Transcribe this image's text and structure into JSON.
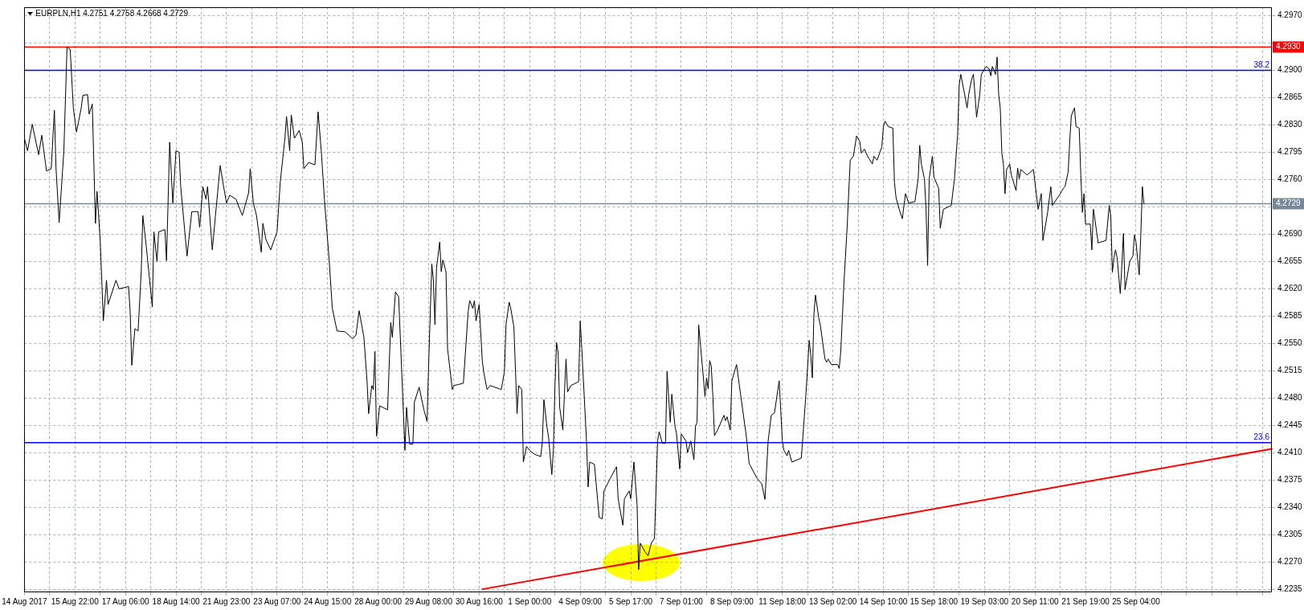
{
  "chart_data": {
    "type": "line",
    "title": "EURPLN,H1 4.2751 4.2758 4.2668 4.2729",
    "categories": [
      "14 Aug 2017",
      null,
      null,
      null,
      null,
      null,
      null,
      null,
      null,
      null,
      null,
      null,
      null,
      null,
      null,
      null,
      null,
      null,
      null,
      null,
      null,
      null,
      null,
      null,
      null,
      null,
      null,
      null,
      null,
      null,
      null,
      null,
      "15 Aug 22:00",
      null,
      null,
      null,
      null,
      null,
      null,
      null,
      null,
      null,
      null,
      null,
      null,
      null,
      null,
      null,
      null,
      null,
      null,
      null,
      null,
      null,
      null,
      null,
      null,
      null,
      null,
      null,
      null,
      null,
      null,
      null,
      "17 Aug 06:00",
      null,
      null,
      null,
      null,
      null,
      null,
      null,
      null,
      null,
      null,
      null,
      null,
      null,
      null,
      null,
      null,
      null,
      null,
      null,
      null,
      null,
      null,
      null,
      null,
      null,
      null,
      null,
      null,
      null,
      null,
      null,
      "18 Aug 14:00",
      null,
      null,
      null,
      null,
      null,
      null,
      null,
      null,
      null,
      null,
      null,
      null,
      null,
      null,
      null,
      null,
      null,
      null,
      null,
      null,
      null,
      null,
      null,
      null,
      null,
      null,
      null,
      null,
      null,
      null,
      null,
      "21 Aug 23:00",
      null,
      null,
      null,
      null,
      null,
      null,
      null,
      null,
      null,
      null,
      null,
      null,
      null,
      null,
      null,
      null,
      null,
      null,
      null,
      null,
      null,
      null,
      null,
      null,
      null,
      null,
      null,
      null,
      null,
      null,
      null,
      "23 Aug 07:00",
      null,
      null,
      null,
      null,
      null,
      null,
      null,
      null,
      null,
      null,
      null,
      null,
      null,
      null,
      null,
      null,
      null,
      null,
      null,
      null,
      null,
      null,
      null,
      null,
      null,
      null,
      null,
      null,
      null,
      null,
      null,
      "24 Aug 15:00",
      null,
      null,
      null,
      null,
      null,
      null,
      null,
      null,
      null,
      null,
      null,
      null,
      null,
      null,
      null,
      null,
      null,
      null,
      null,
      null,
      null,
      null,
      null,
      null,
      null,
      null,
      null,
      null,
      null,
      null,
      null,
      "28 Aug 00:00",
      null,
      null,
      null,
      null,
      null,
      null,
      null,
      null,
      null,
      null,
      null,
      null,
      null,
      null,
      null,
      null,
      null,
      null,
      null,
      null,
      null,
      null,
      null,
      null,
      null,
      null,
      null,
      null,
      null,
      null,
      null,
      "29 Aug 08:00",
      null,
      null,
      null,
      null,
      null,
      null,
      null,
      null,
      null,
      null,
      null,
      null,
      null,
      null,
      null,
      null,
      null,
      null,
      null,
      null,
      null,
      null,
      null,
      null,
      null,
      null,
      null,
      null,
      null,
      null,
      null,
      "30 Aug 16:00",
      null,
      null,
      null,
      null,
      null,
      null,
      null,
      null,
      null,
      null,
      null,
      null,
      null,
      null,
      null,
      null,
      null,
      null,
      null,
      null,
      null,
      null,
      null,
      null,
      null,
      null,
      null,
      null,
      null,
      null,
      null,
      "1 Sep 00:00",
      null,
      null,
      null,
      null,
      null,
      null,
      null,
      null,
      null,
      null,
      null,
      null,
      null,
      null,
      null,
      null,
      null,
      null,
      null,
      null,
      null,
      null,
      null,
      null,
      null,
      null,
      null,
      null,
      null,
      null,
      null,
      "4 Sep 09:00",
      null,
      null,
      null,
      null,
      null,
      null,
      null,
      null,
      null,
      null,
      null,
      null,
      null,
      null,
      null,
      null,
      null,
      null,
      null,
      null,
      null,
      null,
      null,
      null,
      null,
      null,
      null,
      null,
      null,
      null,
      null,
      "5 Sep 17:00",
      null,
      null,
      null,
      null,
      null,
      null,
      null,
      null,
      null,
      null,
      null,
      null,
      null,
      null,
      null,
      null,
      null,
      null,
      null,
      null,
      null,
      null,
      null,
      null,
      null,
      null,
      null,
      null,
      null,
      null,
      null,
      "7 Sep 01:00",
      null,
      null,
      null,
      null,
      null,
      null,
      null,
      null,
      null,
      null,
      null,
      null,
      null,
      null,
      null,
      null,
      null,
      null,
      null,
      null,
      null,
      null,
      null,
      null,
      null,
      null,
      null,
      null,
      null,
      null,
      null,
      "8 Sep 09:00",
      null,
      null,
      null,
      null,
      null,
      null,
      null,
      null,
      null,
      null,
      null,
      null,
      null,
      null,
      null,
      null,
      null,
      null,
      null,
      null,
      null,
      null,
      null,
      null,
      null,
      null,
      null,
      null,
      null,
      null,
      null,
      "11 Sep 18:00",
      null,
      null,
      null,
      null,
      null,
      null,
      null,
      null,
      null,
      null,
      null,
      null,
      null,
      null,
      null,
      null,
      null,
      null,
      null,
      null,
      null,
      null,
      null,
      null,
      null,
      null,
      null,
      null,
      null,
      null,
      null,
      "13 Sep 02:00",
      null,
      null,
      null,
      null,
      null,
      null,
      null,
      null,
      null,
      null,
      null,
      null,
      null,
      null,
      null,
      null,
      null,
      null,
      null,
      null,
      null,
      null,
      null,
      null,
      null,
      null,
      null,
      null,
      null,
      null,
      null,
      "14 Sep 10:00",
      null,
      null,
      null,
      null,
      null,
      null,
      null,
      null,
      null,
      null,
      null,
      null,
      null,
      null,
      null,
      null,
      null,
      null,
      null,
      null,
      null,
      null,
      null,
      null,
      null,
      null,
      null,
      null,
      null,
      null,
      null,
      "15 Sep 18:00",
      null,
      null,
      null,
      null,
      null,
      null,
      null,
      null,
      null,
      null,
      null,
      null,
      null,
      null,
      null,
      null,
      null,
      null,
      null,
      null,
      null,
      null,
      null,
      null,
      null,
      null,
      null,
      null,
      null,
      null,
      null,
      "19 Sep 03:00",
      null,
      null,
      null,
      null,
      null,
      null,
      null,
      null,
      null,
      null,
      null,
      null,
      null,
      null,
      null,
      null,
      null,
      null,
      null,
      null,
      null,
      null,
      null,
      null,
      null,
      null,
      null,
      null,
      null,
      null,
      null,
      "20 Sep 11:00",
      null,
      null,
      null,
      null,
      null,
      null,
      null,
      null,
      null,
      null,
      null,
      null,
      null,
      null,
      null,
      null,
      null,
      null,
      null,
      null,
      null,
      null,
      null,
      null,
      null,
      null,
      null,
      null,
      null,
      null,
      null,
      "21 Sep 19:00",
      null,
      null,
      null,
      null,
      null,
      null,
      null,
      null,
      null,
      null,
      null,
      null,
      null,
      null,
      null,
      null,
      null,
      null,
      null,
      null,
      null,
      null,
      null,
      null,
      null,
      null,
      null,
      null,
      null,
      null,
      null,
      "25 Sep 04:00",
      null,
      null,
      null,
      null,
      null,
      null,
      null,
      null,
      null,
      null,
      null,
      null,
      null,
      null,
      null,
      null,
      null,
      null,
      null,
      null,
      null,
      null,
      null,
      null,
      null,
      null,
      null,
      null,
      null,
      null,
      null,
      null,
      null,
      null,
      null,
      null,
      null,
      null,
      null,
      null,
      null,
      null,
      null,
      null,
      null,
      null,
      null,
      null,
      null,
      null,
      null,
      null,
      null,
      null,
      null,
      null,
      null,
      null,
      null,
      null,
      null,
      null,
      null,
      null,
      null,
      null,
      null,
      null,
      null,
      null,
      null,
      null,
      null,
      null,
      null,
      null,
      null,
      null,
      null,
      null,
      null,
      null,
      null,
      null,
      null,
      null
    ],
    "series": [
      {
        "color": "#000000",
        "values": [
          4.2813,
          null,
          4.2797,
          null,
          null,
          4.2831,
          null,
          null,
          null,
          4.2792,
          null,
          4.2817,
          null,
          null,
          4.2771,
          null,
          null,
          4.2774,
          null,
          4.2849,
          4.2776,
          null,
          4.2705,
          null,
          null,
          4.2797,
          null,
          4.293,
          null,
          4.2927,
          null,
          4.2852,
          null,
          4.2821,
          null,
          null,
          4.2852,
          4.2868,
          null,
          null,
          4.2869,
          4.2844,
          null,
          4.2857,
          null,
          4.2704,
          4.2745,
          null,
          4.2683,
          null,
          4.2579,
          null,
          4.2631,
          4.26,
          null,
          null,
          null,
          null,
          4.2631,
          null,
          4.262,
          null,
          null,
          null,
          null,
          null,
          4.2623,
          4.259,
          4.2522,
          null,
          4.2569,
          null,
          4.2566,
          null,
          4.2642,
          4.2714,
          null,
          4.2678,
          null,
          null,
          null,
          4.2597,
          4.2693,
          null,
          4.2655,
          4.2693,
          null,
          null,
          null,
          4.2696,
          4.2656,
          null,
          4.2808,
          null,
          4.273,
          null,
          4.2797,
          null,
          4.2795,
          4.2751,
          null,
          null,
          null,
          4.2662,
          null,
          null,
          4.2719,
          null,
          null,
          null,
          4.2719,
          4.2699,
          null,
          4.2751,
          null,
          4.2735,
          4.2751,
          null,
          null,
          4.267,
          null,
          4.2714,
          null,
          null,
          4.2778,
          null,
          4.2753,
          null,
          4.273,
          null,
          4.274,
          null,
          null,
          null,
          4.2735,
          null,
          null,
          null,
          4.2714,
          null,
          null,
          null,
          4.2743,
          4.2774,
          null,
          4.273,
          null,
          4.2714,
          null,
          null,
          4.2667,
          4.2704,
          null,
          4.2683,
          null,
          null,
          4.267,
          null,
          null,
          null,
          4.2693,
          null,
          4.2756,
          null,
          null,
          4.2813,
          4.2841,
          null,
          4.2797,
          4.2843,
          null,
          4.2813,
          null,
          null,
          4.2823,
          null,
          4.2808,
          4.2774,
          null,
          null,
          4.2782,
          null,
          null,
          null,
          4.2779,
          null,
          4.2847,
          null,
          4.2797,
          null,
          4.2735,
          null,
          null,
          4.2657,
          null,
          4.2595,
          null,
          null,
          4.2566,
          null,
          null,
          null,
          null,
          4.2565,
          null,
          null,
          null,
          null,
          4.2556,
          null,
          4.2561,
          null,
          4.2592,
          null,
          null,
          4.2558,
          null,
          4.2501,
          4.246,
          null,
          4.2496,
          4.2491,
          4.254,
          4.2431,
          null,
          4.247,
          null,
          null,
          null,
          null,
          4.2465,
          null,
          4.2577,
          4.2558,
          null,
          4.2616,
          null,
          4.261,
          null,
          4.2512,
          null,
          4.2413,
          4.2468,
          null,
          4.2421,
          null,
          4.2421,
          4.2475,
          null,
          null,
          4.2494,
          null,
          null,
          4.2465,
          null,
          4.245,
          4.2522,
          null,
          4.2652,
          4.2631,
          4.2574,
          4.2647,
          null,
          4.268,
          4.2642,
          4.2657,
          null,
          4.2642,
          4.2543,
          null,
          null,
          4.2491,
          4.2496,
          null,
          null,
          null,
          null,
          null,
          4.2499,
          null,
          null,
          4.259,
          4.2605,
          null,
          4.2595,
          4.2605,
          4.2579,
          null,
          4.26,
          null,
          4.2527,
          4.2512,
          null,
          4.2491,
          null,
          4.2496,
          null,
          null,
          null,
          null,
          null,
          null,
          4.2491,
          null,
          4.2514,
          4.2574,
          null,
          4.2603,
          4.2595,
          null,
          4.2571,
          null,
          4.246,
          4.2496,
          null,
          4.2491,
          4.2398,
          null,
          4.2418,
          null,
          4.2413,
          null,
          null,
          4.2408,
          null,
          null,
          null,
          4.2405,
          4.2424,
          4.2478,
          null,
          4.2442,
          4.2429,
          null,
          4.2382,
          4.2413,
          4.2496,
          4.2551,
          4.2538,
          4.2468,
          null,
          4.2439,
          4.2486,
          4.253,
          4.2488,
          null,
          4.2496,
          null,
          null,
          null,
          null,
          4.2501,
          4.2579,
          4.2543,
          null,
          null,
          4.2424,
          4.2366,
          4.2398,
          null,
          null,
          4.2395,
          null,
          null,
          4.2327,
          null,
          4.2325,
          4.2361,
          null,
          null,
          null,
          4.2377,
          null,
          null,
          null,
          4.2392,
          4.2351,
          null,
          null,
          4.2317,
          4.2351,
          null,
          null,
          4.2361,
          4.2351,
          null,
          4.2398,
          null,
          4.2343,
          4.226,
          4.2294,
          null,
          null,
          4.2283,
          null,
          4.2278,
          null,
          4.2294,
          null,
          4.23,
          null,
          4.2425,
          4.2437,
          null,
          4.2422,
          null,
          4.2422,
          4.2514,
          null,
          4.2449,
          4.2485,
          null,
          4.2444,
          4.2434,
          null,
          4.2389,
          4.2434,
          null,
          null,
          4.2425,
          4.241,
          null,
          4.2425,
          null,
          4.2401,
          4.2444,
          4.2449,
          4.2574,
          null,
          null,
          4.2506,
          4.2482,
          4.2506,
          4.2492,
          4.2528,
          4.2521,
          4.2482,
          4.2432,
          null,
          4.2439,
          null,
          null,
          null,
          4.2458,
          4.2451,
          4.2456,
          null,
          4.2439,
          4.2502,
          null,
          null,
          4.2523,
          null,
          null,
          4.2478,
          null,
          null,
          4.2434,
          null,
          4.2396,
          null,
          null,
          null,
          null,
          4.2377,
          null,
          null,
          4.237,
          null,
          4.235,
          null,
          4.2425,
          null,
          4.2458,
          null,
          4.2461,
          null,
          null,
          4.2502,
          null,
          4.2425,
          4.2413,
          null,
          4.2406,
          4.2413,
          null,
          4.2398,
          null,
          null,
          null,
          null,
          null,
          4.2403,
          4.243,
          null,
          4.2487,
          null,
          4.2554,
          4.2535,
          4.2506,
          4.2588,
          4.2612,
          null,
          4.2583,
          4.2574,
          null,
          null,
          4.253,
          4.2526,
          4.253,
          null,
          4.2523,
          null,
          null,
          null,
          4.2523,
          4.2518,
          4.254,
          null,
          4.2627,
          null,
          4.2698,
          null,
          4.2785,
          null,
          4.279,
          null,
          4.2816,
          null,
          4.2809,
          4.2794,
          null,
          4.2799,
          null,
          4.279,
          null,
          null,
          4.278,
          4.279,
          null,
          4.2785,
          null,
          null,
          4.2802,
          4.2828,
          4.2835,
          null,
          4.2828,
          null,
          null,
          4.2826,
          4.2756,
          4.2737,
          null,
          4.2722,
          null,
          4.271,
          null,
          4.2742,
          null,
          4.273,
          null,
          null,
          null,
          4.2732,
          null,
          4.2761,
          4.2804,
          4.278,
          null,
          4.2761,
          4.2722,
          4.265,
          4.2761,
          null,
          4.279,
          4.2763,
          null,
          null,
          4.2749,
          4.2698,
          null,
          4.2722,
          null,
          null,
          null,
          null,
          4.2727,
          null,
          4.2761,
          null,
          4.2818,
          4.2881,
          4.2895,
          null,
          4.2874,
          null,
          4.2852,
          4.2869,
          null,
          4.289,
          4.2895,
          4.2869,
          4.284,
          null,
          4.2869,
          4.2895,
          null,
          null,
          4.2905,
          null,
          4.2902,
          4.2893,
          4.2905,
          null,
          4.2895,
          4.2917,
          4.2869,
          4.2852,
          4.2794,
          4.278,
          4.2742,
          4.2773,
          null,
          4.278,
          4.2766,
          null,
          null,
          4.2746,
          4.2775,
          4.2761,
          4.2773,
          null,
          null,
          null,
          4.2766,
          null,
          null,
          null,
          4.2773,
          null,
          4.2739,
          4.2722,
          null,
          4.2742,
          4.2682,
          4.2694,
          null,
          4.2718,
          null,
          4.2751,
          4.2727,
          null,
          null,
          null,
          null,
          4.2742,
          null,
          4.2749,
          4.2751,
          null,
          4.277,
          4.2809,
          4.2842,
          null,
          4.2852,
          4.2828,
          null,
          4.2826,
          4.2766,
          4.2718,
          4.2742,
          4.2703,
          null,
          null,
          4.2703,
          4.267,
          4.2722,
          4.2708,
          null,
          4.2679,
          null,
          null,
          null,
          null,
          4.2682,
          null,
          4.2727,
          4.2713,
          4.2641,
          4.266,
          4.267,
          4.266,
          null,
          4.2614,
          4.265,
          4.2691,
          4.2619,
          4.2631,
          null,
          4.2655,
          null,
          4.2662,
          4.2689,
          4.2679,
          4.2658,
          4.2638,
          4.2689,
          4.2751,
          4.2729,
          null,
          null,
          null,
          null,
          null,
          null,
          null,
          null,
          null,
          null,
          null,
          null,
          null,
          null,
          null,
          null,
          null,
          null,
          null,
          null,
          null,
          null,
          null,
          null,
          null,
          null,
          null,
          null,
          null,
          null,
          null,
          null,
          null,
          null,
          null,
          null,
          null,
          null,
          null,
          null,
          null,
          null,
          null,
          null,
          null,
          null,
          null,
          null,
          null,
          null,
          null,
          null,
          null,
          null,
          null,
          null,
          null,
          null,
          null,
          null,
          null,
          null,
          null,
          null,
          null,
          null,
          null,
          null,
          null,
          null,
          null,
          null,
          null,
          null,
          null,
          null,
          null,
          null,
          null,
          null,
          null
        ]
      },
      {
        "color": "#ff0000",
        "values": [
          null,
          null,
          null,
          null,
          null,
          null,
          null,
          null,
          null,
          null,
          null,
          null,
          null,
          null,
          null,
          null,
          null,
          null,
          null,
          null,
          null,
          null,
          null,
          null,
          null,
          null,
          null,
          null,
          null,
          null,
          null,
          null,
          null,
          null,
          null,
          null,
          null,
          null,
          null,
          null,
          null,
          null,
          null,
          null,
          null,
          null,
          null,
          null,
          null,
          null,
          null,
          null,
          null,
          null,
          null,
          null,
          null,
          null,
          null,
          null,
          null,
          null,
          null,
          null,
          null,
          null,
          null,
          null,
          null,
          null,
          null,
          null,
          null,
          null,
          null,
          null,
          null,
          null,
          null,
          null,
          null,
          null,
          null,
          null,
          null,
          null,
          null,
          null,
          null,
          null,
          null,
          null,
          null,
          null,
          null,
          null,
          null,
          null,
          null,
          null,
          null,
          null,
          null,
          null,
          null,
          null,
          null,
          null,
          null,
          null,
          null,
          null,
          null,
          null,
          null,
          null,
          null,
          null,
          null,
          null,
          null,
          null,
          null,
          null,
          null,
          null,
          null,
          null,
          null,
          null,
          null,
          null,
          null,
          null,
          null,
          null,
          null,
          null,
          null,
          null,
          null,
          null,
          null,
          null,
          null,
          null,
          null,
          null,
          null,
          null,
          null,
          null,
          null,
          null,
          null,
          null,
          null,
          null,
          null,
          null,
          null,
          null,
          null,
          null,
          null,
          null,
          null,
          null,
          null,
          null,
          null,
          null,
          null,
          null,
          null,
          null,
          null,
          null,
          null,
          null,
          null,
          null,
          null,
          null,
          null,
          null,
          null,
          null,
          null,
          null,
          null,
          null,
          null,
          null,
          null,
          null,
          null,
          null,
          null,
          null,
          null,
          null,
          null,
          null,
          null,
          null,
          null,
          null,
          null,
          null,
          null,
          null,
          null,
          null,
          null,
          null,
          null,
          null,
          null,
          null,
          null,
          null,
          null,
          null,
          null,
          null,
          null,
          null,
          null,
          null,
          null,
          null,
          null,
          null,
          null,
          null,
          null,
          null,
          null,
          null,
          null,
          null,
          null,
          null,
          null,
          null,
          null,
          null,
          null,
          null,
          null,
          null,
          null,
          null,
          null,
          null,
          null,
          null,
          null,
          null,
          null,
          null,
          null,
          null,
          null,
          null,
          null,
          null,
          null,
          null,
          null,
          null,
          null,
          null,
          null,
          null,
          null,
          null,
          null,
          null,
          null,
          null,
          null,
          null,
          null,
          null,
          null,
          null,
          null,
          null,
          4.2235,
          null,
          null,
          null,
          null,
          null,
          null,
          null,
          null,
          null,
          null,
          null,
          null,
          null,
          null,
          null,
          null,
          null,
          null,
          null,
          null,
          null,
          null,
          null,
          null,
          null,
          null,
          null,
          null,
          null,
          null,
          null,
          null,
          null,
          null,
          null,
          null,
          null,
          null,
          null,
          null,
          null,
          null,
          null,
          null,
          null,
          null,
          null,
          null,
          null,
          null,
          null,
          null,
          null,
          null,
          null,
          null,
          null,
          null,
          null,
          null,
          null,
          null,
          null,
          null,
          null,
          null,
          null,
          null,
          null,
          null,
          null,
          null,
          null,
          null,
          null,
          null,
          null,
          null,
          null,
          null,
          null,
          null,
          null,
          null,
          null,
          null,
          null,
          null,
          null,
          null,
          null,
          null,
          null,
          null,
          null,
          null,
          null,
          null,
          null,
          null,
          null,
          null,
          null,
          null,
          null,
          null,
          null,
          null,
          null,
          null,
          null,
          null,
          null,
          null,
          null,
          null,
          null,
          null,
          null,
          null,
          null,
          null,
          null,
          null,
          null,
          null,
          null,
          null,
          null,
          null,
          null,
          null,
          null,
          null,
          null,
          null,
          null,
          null,
          null,
          null,
          null,
          null,
          null,
          null,
          null,
          null,
          null,
          null,
          null,
          null,
          null,
          null,
          null,
          null,
          null,
          null,
          null,
          null,
          null,
          null,
          null,
          null,
          null,
          null,
          null,
          null,
          null,
          null,
          null,
          null,
          null,
          null,
          null,
          null,
          null,
          null,
          null,
          null,
          null,
          null,
          null,
          null,
          null,
          null,
          null,
          null,
          null,
          null,
          null,
          null,
          null,
          null,
          null,
          null,
          null,
          null,
          null,
          null,
          null,
          null,
          null,
          null,
          null,
          null,
          null,
          null,
          null,
          null,
          null,
          null,
          null,
          null,
          null,
          null,
          null,
          null,
          null,
          null,
          null,
          null,
          null,
          null,
          null,
          null,
          null,
          null,
          null,
          null,
          null,
          null,
          null,
          null,
          null,
          null,
          null,
          null,
          null,
          null,
          null,
          null,
          null,
          null,
          null,
          null,
          null,
          null,
          null,
          null,
          null,
          null,
          null,
          null,
          null,
          null,
          null,
          null,
          null,
          null,
          null,
          null,
          null,
          null,
          null,
          null,
          null,
          null,
          null,
          null,
          null,
          null,
          null,
          null,
          null,
          null,
          null,
          null,
          null,
          null,
          null,
          null,
          null,
          null,
          null,
          null,
          null,
          null,
          null,
          null,
          null,
          null,
          null,
          null,
          null,
          null,
          null,
          null,
          null,
          null,
          null,
          null,
          null,
          null,
          null,
          null,
          null,
          null,
          null,
          null,
          null,
          null,
          null,
          null,
          null,
          null,
          null,
          null,
          null,
          null,
          null,
          null,
          null,
          null,
          null,
          null,
          null,
          null,
          null,
          null,
          null,
          null,
          null,
          null,
          null,
          null,
          null,
          null,
          null,
          null,
          null,
          null,
          null,
          null,
          null,
          null,
          null,
          null,
          null,
          null,
          null,
          null,
          null,
          null,
          null,
          null,
          null,
          null,
          null,
          null,
          null,
          null,
          null,
          null,
          null,
          null,
          null,
          null,
          null,
          null,
          null,
          null,
          null,
          null,
          null,
          null,
          null,
          null,
          null,
          null,
          null,
          null,
          null,
          null,
          null,
          null,
          null,
          null,
          null,
          null,
          null,
          null,
          null,
          null,
          null,
          null,
          null,
          null,
          null,
          null,
          null,
          null,
          null,
          null,
          null,
          null,
          null,
          null,
          null,
          null,
          null,
          null,
          null,
          null,
          null,
          null,
          null,
          null,
          null,
          null,
          null,
          null,
          null,
          null,
          null,
          null,
          null,
          null,
          null,
          null,
          null,
          null,
          null,
          null,
          null,
          null,
          null,
          null,
          null,
          null,
          null,
          null,
          null,
          null,
          null,
          null,
          null,
          null,
          null,
          null,
          null,
          null,
          null,
          null,
          null,
          null,
          null,
          null,
          null,
          null,
          null,
          null,
          null,
          null,
          null,
          null,
          null,
          null,
          null,
          null,
          null,
          null,
          null,
          null,
          null,
          null,
          null,
          null,
          null,
          null,
          null,
          null,
          null,
          null,
          null,
          null,
          null,
          null,
          null,
          null,
          null,
          null,
          null,
          null,
          null,
          null,
          null,
          null,
          null,
          null,
          null,
          4.2415
        ]
      }
    ],
    "ylim": [
      4.2231,
      4.2981
    ],
    "yticks": [
      4.2235,
      {
        "value": 4.227,
        "label": "4.2270"
      },
      4.2305,
      {
        "value": 4.234,
        "label": "4.2340"
      },
      4.2375,
      {
        "value": 4.241,
        "label": "4.2410"
      },
      4.2445,
      {
        "value": 4.248,
        "label": "4.2480"
      },
      4.2515,
      {
        "value": 4.255,
        "label": "4.2550"
      },
      4.2585,
      {
        "value": 4.262,
        "label": "4.2620"
      },
      4.2655,
      {
        "value": 4.269,
        "label": "4.2690"
      },
      {
        "value": 4.2725,
        "label": null
      },
      {
        "value": 4.276,
        "label": "4.2760"
      },
      4.2795,
      {
        "value": 4.283,
        "label": "4.2830"
      },
      4.2865,
      {
        "value": 4.29,
        "label": "4.2900"
      },
      {
        "value": 4.2935,
        "label": null
      },
      {
        "value": 4.297,
        "label": "4.2970"
      }
    ],
    "ref_lines": [
      {
        "axis": "y",
        "value": 4.293,
        "label": "4.2930",
        "color": "#ff0000"
      },
      {
        "axis": "y",
        "value": 4.29,
        "color": "#0000ff"
      },
      {
        "axis": "y",
        "value": 4.2423,
        "color": "#0000ff"
      },
      {
        "axis": "y",
        "value": 4.2729,
        "label": "4.2729",
        "color": "#778899"
      }
    ],
    "annotations": [
      {
        "text": "38.2",
        "y": 4.29
      },
      {
        "text": "23.6",
        "y": 4.2423
      }
    ],
    "grid": true,
    "marker": "none"
  }
}
